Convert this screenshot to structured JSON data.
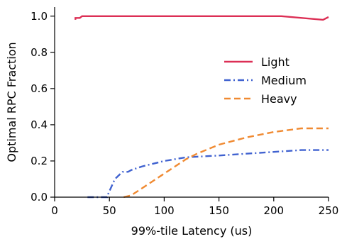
{
  "chart_data": {
    "type": "line",
    "xlabel": "99%-tile Latency (us)",
    "ylabel": "Optimal RPC Fraction",
    "xlim": [
      0,
      250
    ],
    "ylim": [
      0,
      1.05
    ],
    "x_ticks": [
      0,
      50,
      100,
      150,
      200,
      250
    ],
    "x_tick_labels": [
      "0",
      "50",
      "100",
      "150",
      "200",
      "250"
    ],
    "y_ticks": [
      0.0,
      0.2,
      0.4,
      0.6,
      0.8,
      1.0
    ],
    "y_tick_labels": [
      "0.0",
      "0.2",
      "0.4",
      "0.6",
      "0.8",
      "1.0"
    ],
    "grid": false,
    "legend_position": "right",
    "series": [
      {
        "name": "Light",
        "color": "#dc2f55",
        "dash": "solid",
        "x": [
          19,
          19,
          21,
          23,
          25,
          60,
          100,
          150,
          207,
          245,
          250
        ],
        "y": [
          0.98,
          0.99,
          0.99,
          0.99,
          1.0,
          1.0,
          1.0,
          1.0,
          1.0,
          0.98,
          0.995
        ]
      },
      {
        "name": "Medium",
        "color": "#4062d0",
        "dash": "dashdot",
        "x": [
          30,
          48,
          49,
          55,
          62,
          67,
          70,
          80,
          100,
          120,
          150,
          175,
          200,
          225,
          250
        ],
        "y": [
          0.0,
          0.0,
          0.02,
          0.1,
          0.14,
          0.14,
          0.15,
          0.17,
          0.2,
          0.22,
          0.23,
          0.24,
          0.25,
          0.26,
          0.26
        ]
      },
      {
        "name": "Heavy",
        "color": "#f08a32",
        "dash": "dashed",
        "x": [
          63,
          70,
          80,
          90,
          100,
          110,
          120,
          130,
          150,
          175,
          200,
          225,
          250
        ],
        "y": [
          0.0,
          0.01,
          0.05,
          0.09,
          0.13,
          0.17,
          0.21,
          0.24,
          0.29,
          0.33,
          0.36,
          0.38,
          0.38
        ]
      }
    ]
  }
}
